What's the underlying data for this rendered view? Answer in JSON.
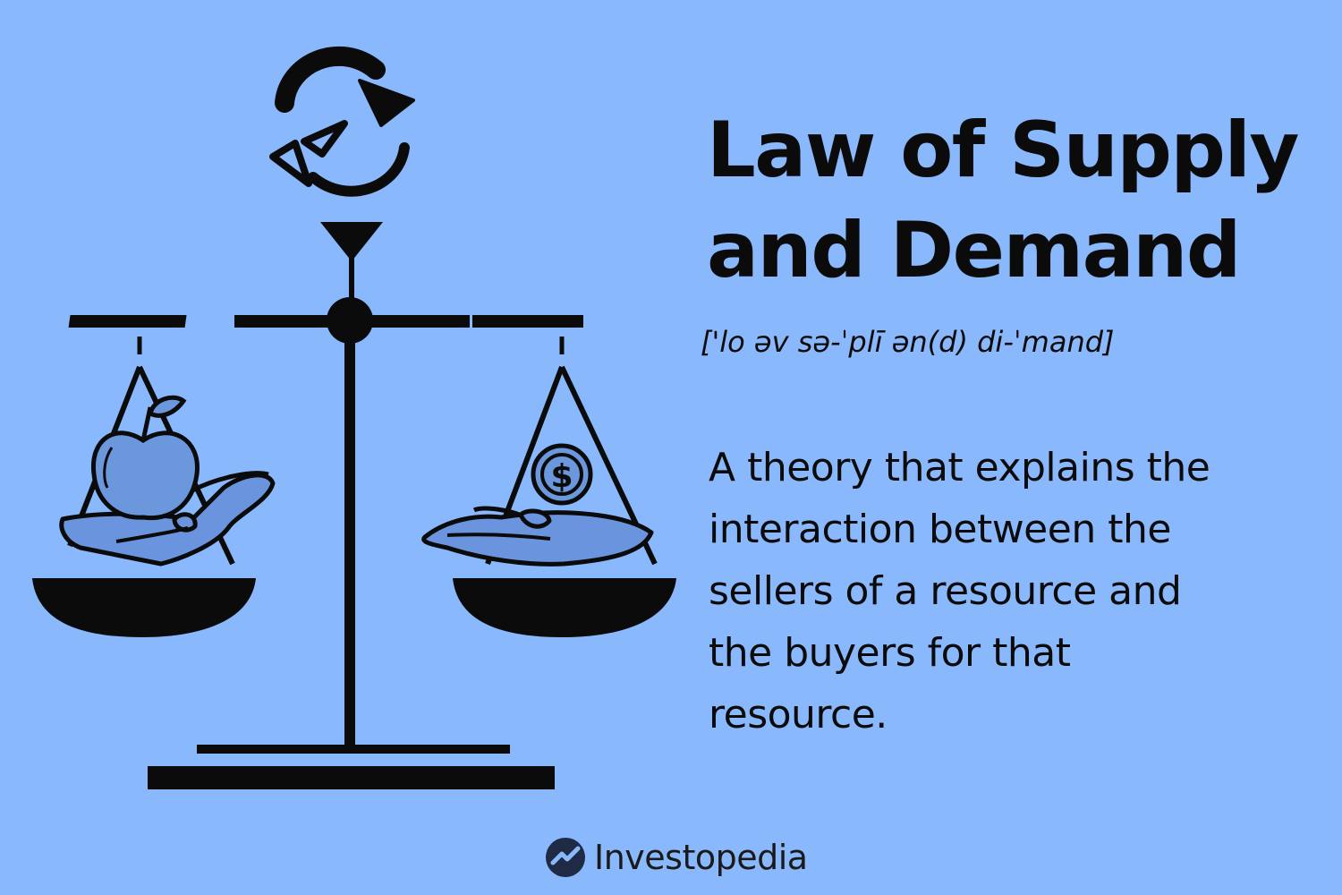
{
  "title": {
    "line1": "Law of Supply",
    "line2": "and Demand"
  },
  "pronunciation": "['lo əv sə-ˈplī ən(d) di-ˈmand]",
  "definition": {
    "line1": "A theory that explains the",
    "line2": "interaction between the",
    "line3": "sellers of a resource and",
    "line4": "the buyers for that",
    "line5": "resource."
  },
  "brand": {
    "name": "Investopedia",
    "icon": "investopedia-logo-icon"
  },
  "illustration": {
    "icons": [
      "cycle-arrows-icon",
      "balance-scale-icon",
      "apple-icon",
      "dollar-coin-icon",
      "hand-icon"
    ],
    "dollar_symbol": "$"
  },
  "colors": {
    "background": "#8ab8fd",
    "ink": "#0b0b0b",
    "hand_fill": "#6a95de",
    "apple_fill": "#6b97dd"
  }
}
